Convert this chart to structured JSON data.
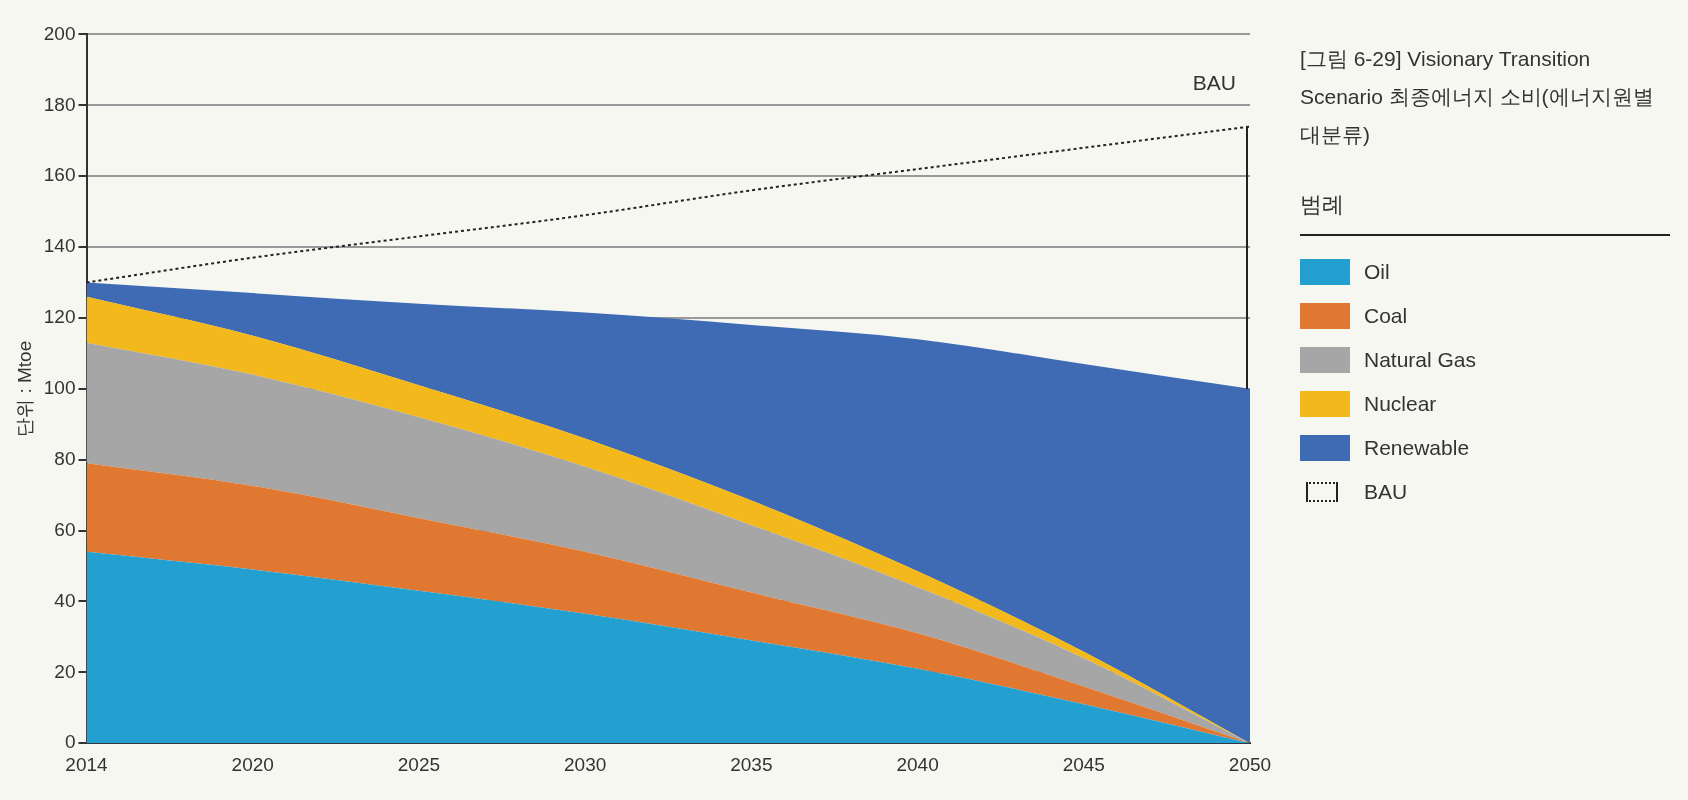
{
  "chart_data": {
    "type": "area",
    "stacked": true,
    "title": "[그림 6-29] Visionary Transition Scenario 최종에너지 소비(에너지원별 대분류)",
    "legend_title": "범례",
    "ylabel": "단위 : Mtoe",
    "categories": [
      "2014",
      "2020",
      "2025",
      "2030",
      "2035",
      "2040",
      "2045",
      "2050"
    ],
    "series": [
      {
        "name": "Oil",
        "color": "#23a0d0",
        "values": [
          54,
          49,
          43,
          36.5,
          29,
          21,
          11,
          0
        ]
      },
      {
        "name": "Coal",
        "color": "#e07832",
        "values": [
          25,
          23.6,
          20.5,
          17.5,
          13.5,
          10,
          5,
          0
        ]
      },
      {
        "name": "Natural Gas",
        "color": "#a6a6a6",
        "values": [
          34,
          31.4,
          28.5,
          24,
          19,
          13,
          8,
          0
        ]
      },
      {
        "name": "Nuclear",
        "color": "#f3b81b",
        "values": [
          13,
          11,
          9,
          8,
          7,
          4.5,
          1.8,
          0
        ]
      },
      {
        "name": "Renewable",
        "color": "#3e6bb4",
        "values": [
          4,
          12,
          23,
          35.5,
          49.5,
          65.5,
          81.2,
          100
        ]
      },
      {
        "name": "BAU",
        "type": "line",
        "color": "#222222",
        "line_style": "dotted",
        "values": [
          130,
          137,
          143,
          149,
          156,
          162,
          168,
          174
        ]
      }
    ],
    "ylim": [
      0,
      200
    ],
    "yticks": [
      0,
      20,
      40,
      60,
      80,
      100,
      120,
      140,
      160,
      180,
      200
    ],
    "grid": "y",
    "legend": "right",
    "annotations": [
      "BAU"
    ]
  }
}
